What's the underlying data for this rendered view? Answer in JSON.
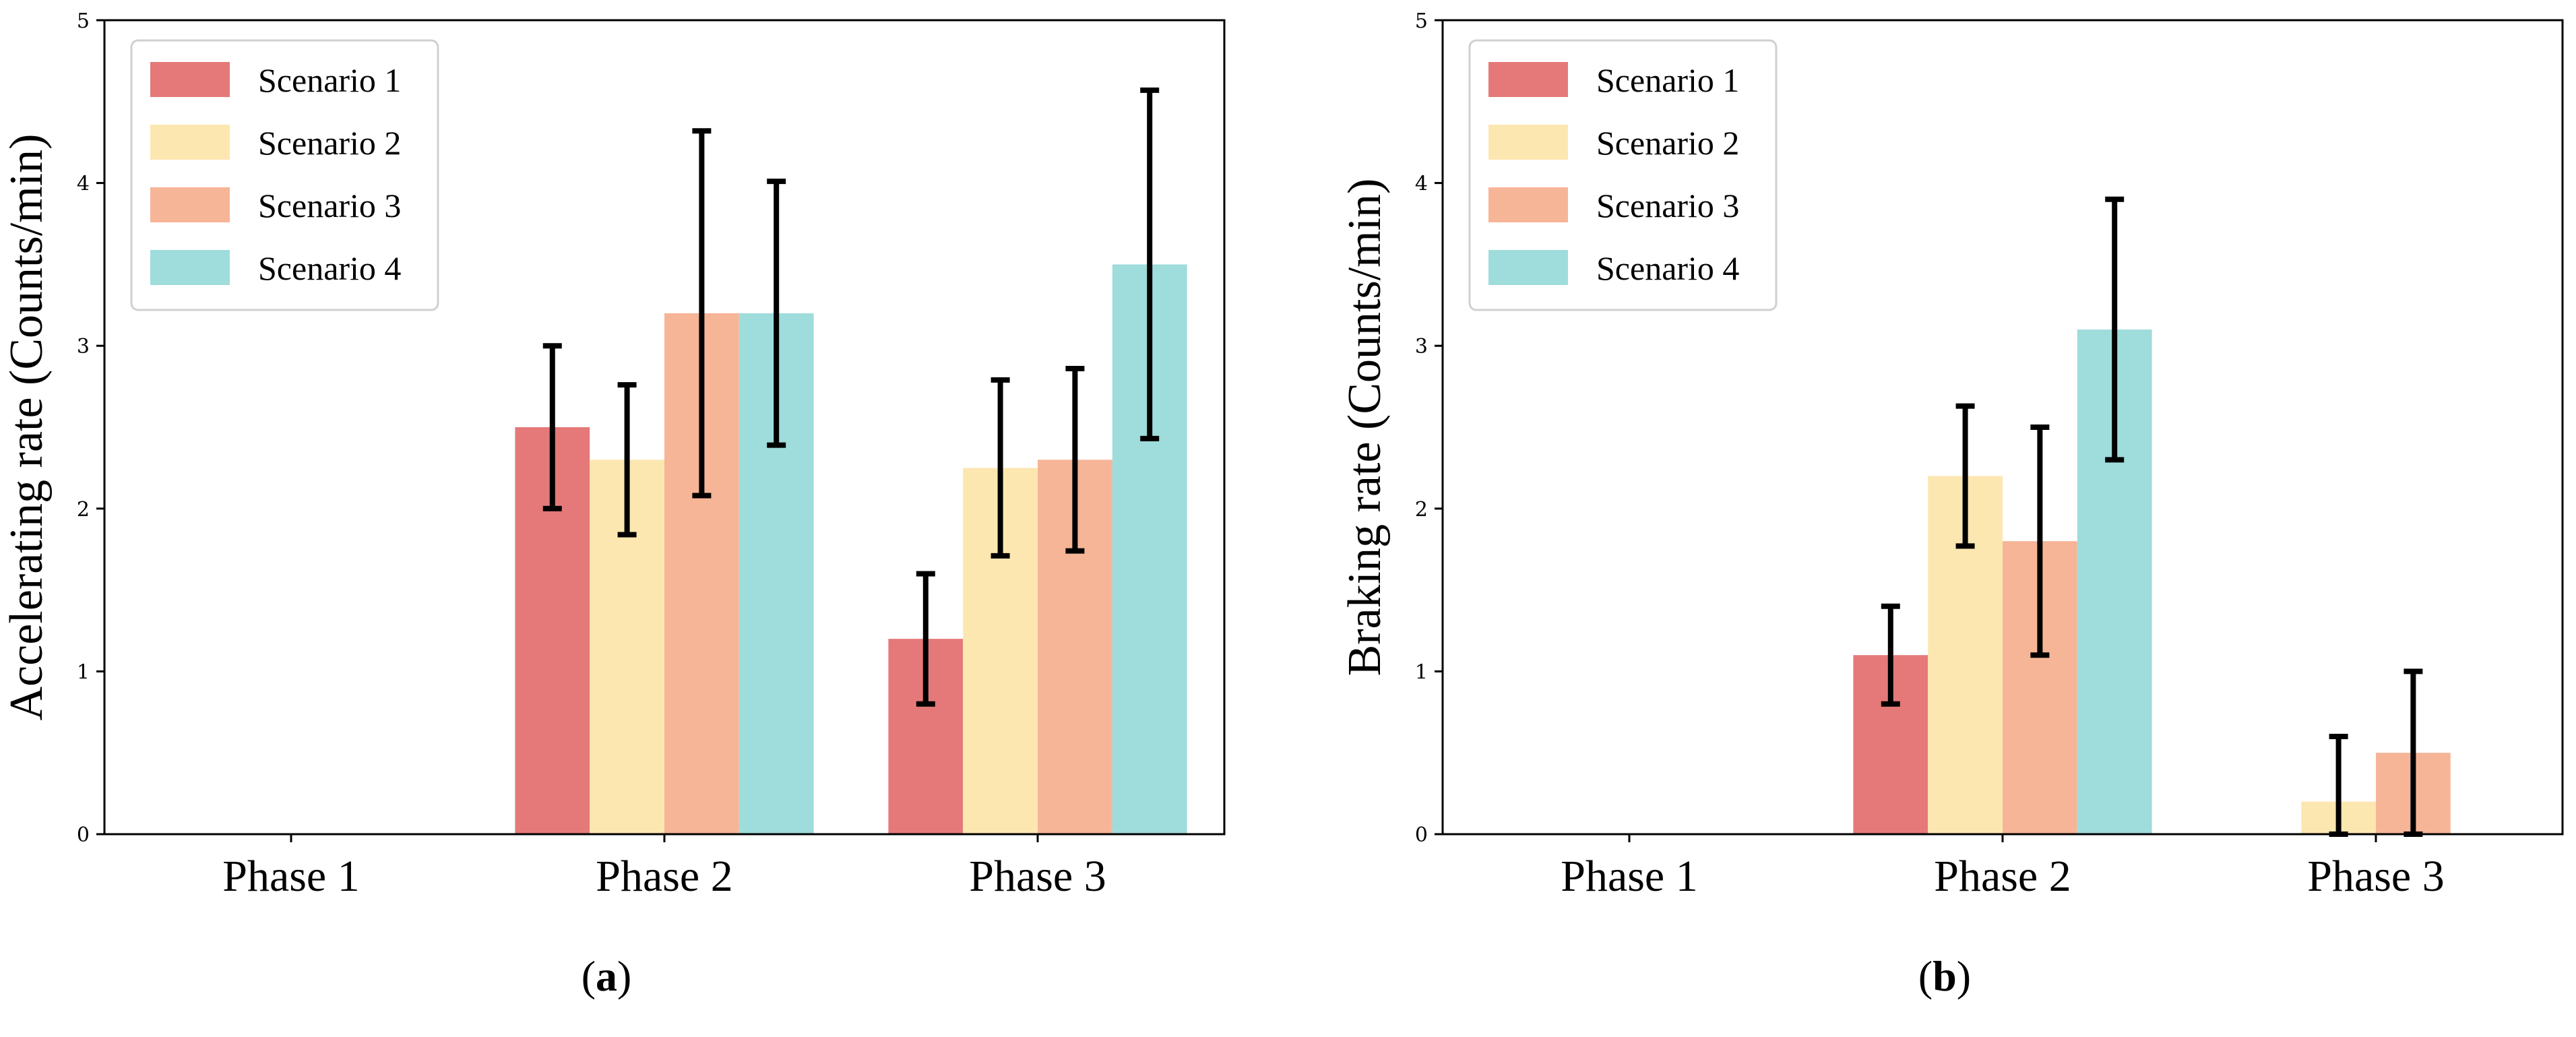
{
  "chart_data": [
    {
      "type": "bar",
      "panel_label": "a",
      "ylabel": "Accelerating rate (Counts/min)",
      "categories": [
        "Phase 1",
        "Phase 2",
        "Phase 3"
      ],
      "ylim": [
        0,
        5
      ],
      "yticks": [
        "0",
        "1",
        "2",
        "3",
        "4",
        "5"
      ],
      "legend_position": "top-left",
      "series": [
        {
          "name": "Scenario 1",
          "color": "#e57979",
          "values": [
            0,
            2.5,
            1.2
          ],
          "errors": [
            0,
            0.5,
            0.4
          ]
        },
        {
          "name": "Scenario 2",
          "color": "#fde7b1",
          "values": [
            0,
            2.3,
            2.25
          ],
          "errors": [
            0,
            0.46,
            0.54
          ]
        },
        {
          "name": "Scenario 3",
          "color": "#f6b597",
          "values": [
            0,
            3.2,
            2.3
          ],
          "errors": [
            0,
            1.12,
            0.56
          ]
        },
        {
          "name": "Scenario 4",
          "color": "#9fdcdc",
          "values": [
            0,
            3.2,
            3.5
          ],
          "errors": [
            0,
            0.81,
            1.07
          ]
        }
      ]
    },
    {
      "type": "bar",
      "panel_label": "b",
      "ylabel": "Braking rate (Counts/min)",
      "categories": [
        "Phase 1",
        "Phase 2",
        "Phase 3"
      ],
      "ylim": [
        0,
        5
      ],
      "yticks": [
        "0",
        "1",
        "2",
        "3",
        "4",
        "5"
      ],
      "legend_position": "top-left",
      "series": [
        {
          "name": "Scenario 1",
          "color": "#e57979",
          "values": [
            0,
            1.1,
            0
          ],
          "errors": [
            0,
            0.3,
            0
          ]
        },
        {
          "name": "Scenario 2",
          "color": "#fde7b1",
          "values": [
            0,
            2.2,
            0.2
          ],
          "errors": [
            0,
            0.43,
            0.4
          ]
        },
        {
          "name": "Scenario 3",
          "color": "#f6b597",
          "values": [
            0,
            1.8,
            0.5
          ],
          "errors": [
            0,
            0.7,
            0.5
          ]
        },
        {
          "name": "Scenario 4",
          "color": "#9fdcdc",
          "values": [
            0,
            3.1,
            0
          ],
          "errors": [
            0,
            0.8,
            0
          ]
        }
      ]
    }
  ]
}
